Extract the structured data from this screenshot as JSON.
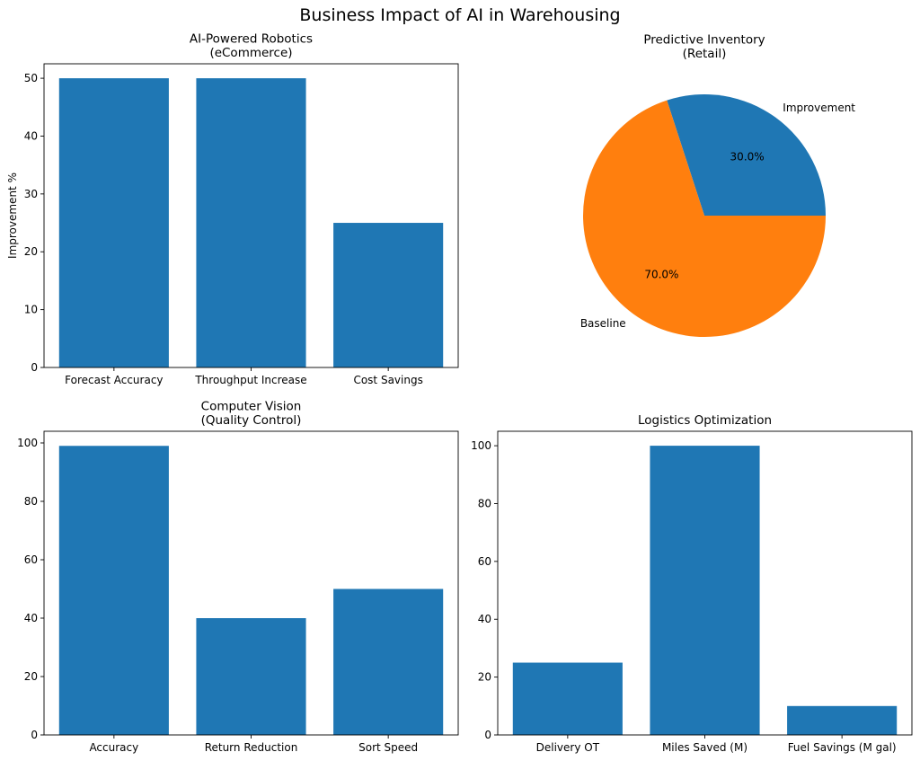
{
  "suptitle": "Business Impact of AI in Warehousing",
  "colors": {
    "blue": "#1f77b4",
    "orange": "#ff7f0e"
  },
  "chart_data": [
    {
      "type": "bar",
      "title": "AI-Powered Robotics\n(eCommerce)",
      "categories": [
        "Forecast Accuracy",
        "Throughput Increase",
        "Cost Savings"
      ],
      "values": [
        50,
        50,
        25
      ],
      "ylabel": "Improvement %",
      "xlabel": "",
      "ylim": [
        0,
        52.5
      ],
      "yticks": [
        0,
        10,
        20,
        30,
        40,
        50
      ],
      "grid": false
    },
    {
      "type": "pie",
      "title": "Predictive Inventory\n(Retail)",
      "labels": [
        "Improvement",
        "Baseline"
      ],
      "values": [
        30,
        70
      ],
      "autopct": [
        "30.0%",
        "70.0%"
      ]
    },
    {
      "type": "bar",
      "title": "Computer Vision\n(Quality Control)",
      "categories": [
        "Accuracy",
        "Return Reduction",
        "Sort Speed"
      ],
      "values": [
        99,
        40,
        50
      ],
      "ylabel": "",
      "xlabel": "",
      "ylim": [
        0,
        104
      ],
      "yticks": [
        0,
        20,
        40,
        60,
        80,
        100
      ],
      "grid": false
    },
    {
      "type": "bar",
      "title": "Logistics Optimization",
      "categories": [
        "Delivery OT",
        "Miles Saved (M)",
        "Fuel Savings (M gal)"
      ],
      "values": [
        25,
        100,
        10
      ],
      "ylabel": "",
      "xlabel": "",
      "ylim": [
        0,
        105
      ],
      "yticks": [
        0,
        20,
        40,
        60,
        80,
        100
      ],
      "grid": false
    }
  ]
}
